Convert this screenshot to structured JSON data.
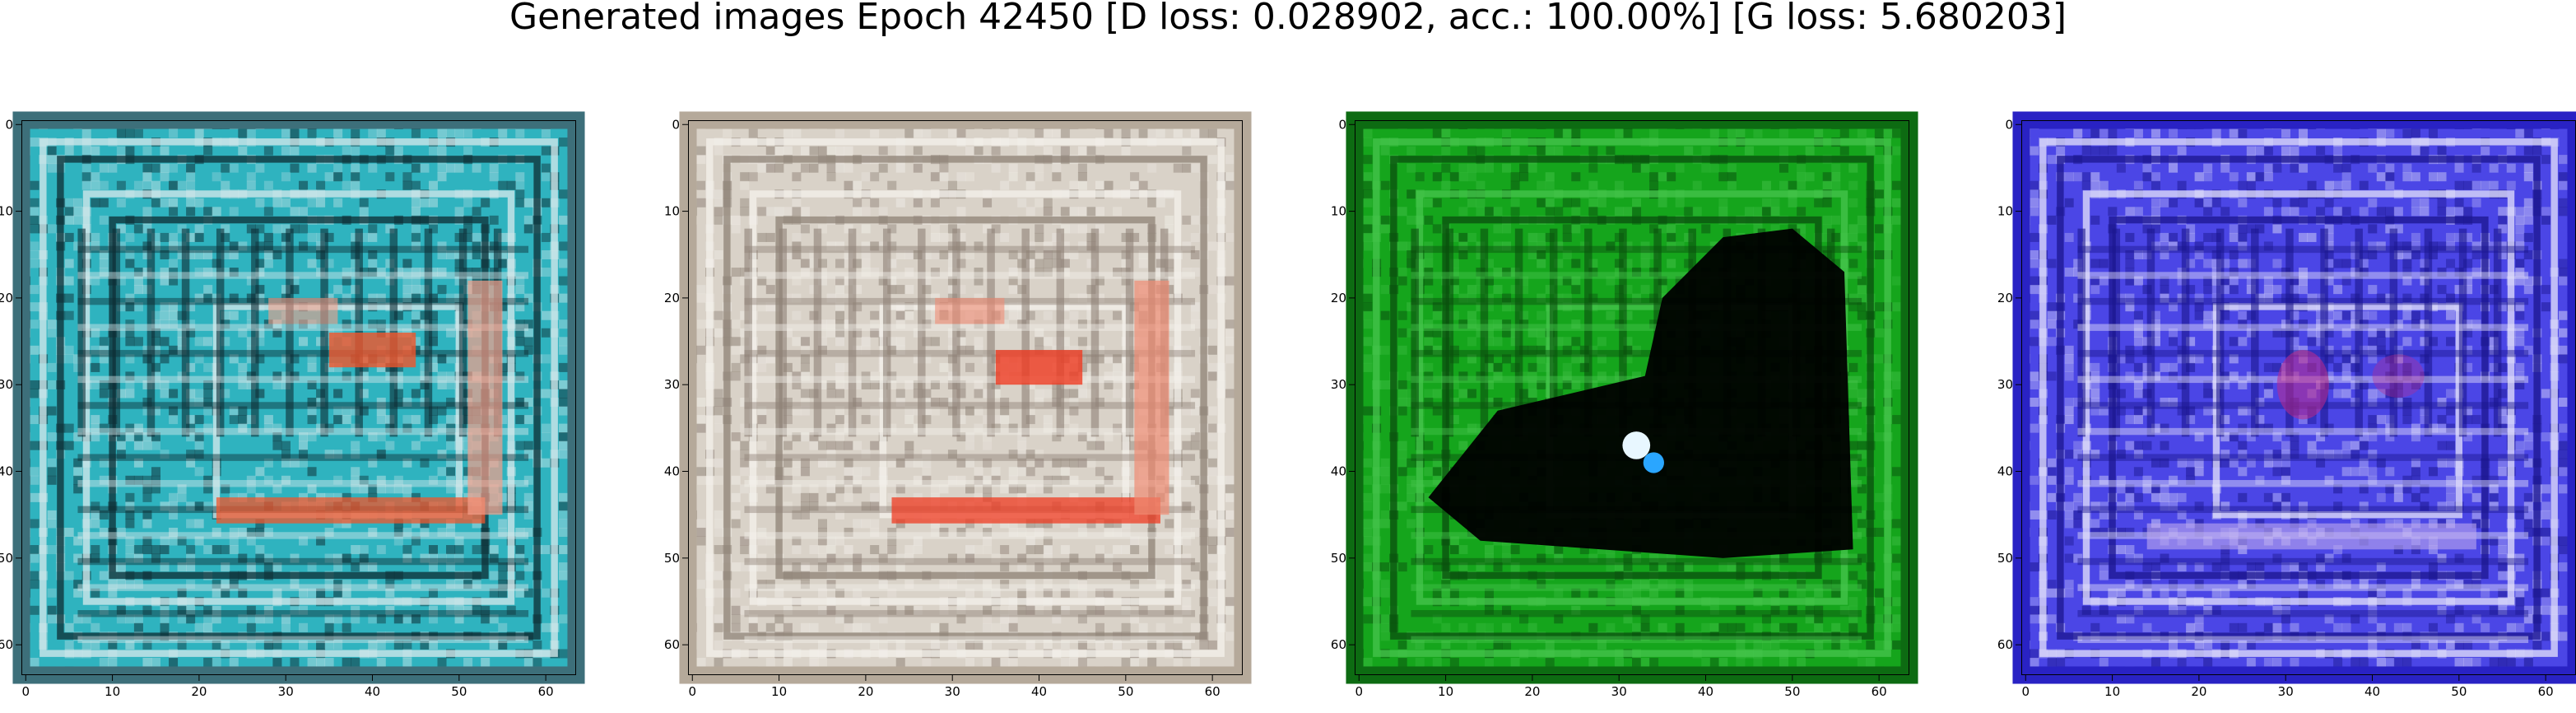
{
  "figure": {
    "title": "Generated images Epoch 42450 [D loss: 0.028902, acc.: 100.00%] [G loss: 5.680203]"
  },
  "axis": {
    "x_ticks": [
      "0",
      "10",
      "20",
      "30",
      "40",
      "50",
      "60"
    ],
    "y_ticks": [
      "0",
      "10",
      "20",
      "30",
      "40",
      "50",
      "60"
    ],
    "pixel_grid": 64,
    "range": [
      -0.5,
      63.5
    ]
  },
  "panels": [
    {
      "id": "sample-1",
      "image_icon": "generated-image-teal",
      "base_color": "#2fb3bf",
      "frame_color": "#3d6f7a",
      "line_color": "#0e2c33",
      "highlight_color": "#d9e9ec",
      "blob_color": "#f2552b",
      "blob2_color": "#f6a08a"
    },
    {
      "id": "sample-2",
      "image_icon": "generated-image-beige",
      "base_color": "#d9d2c8",
      "frame_color": "#b5a99a",
      "line_color": "#8e8176",
      "highlight_color": "#f4f1ec",
      "blob_color": "#ef3b22",
      "blob2_color": "#f08c74"
    },
    {
      "id": "sample-3",
      "image_icon": "generated-image-green",
      "base_color": "#15a51c",
      "frame_color": "#0d6b12",
      "line_color": "#0a4e0e",
      "highlight_color": "#47c54d",
      "blob_color": "#000000",
      "blob2_color": "#e8f7ff"
    },
    {
      "id": "sample-4",
      "image_icon": "generated-image-blue",
      "base_color": "#4b46e6",
      "frame_color": "#2922c4",
      "line_color": "#1b168e",
      "highlight_color": "#e6e4fb",
      "blob_color": "#c02a8a",
      "blob2_color": "#bda8ef"
    }
  ]
}
